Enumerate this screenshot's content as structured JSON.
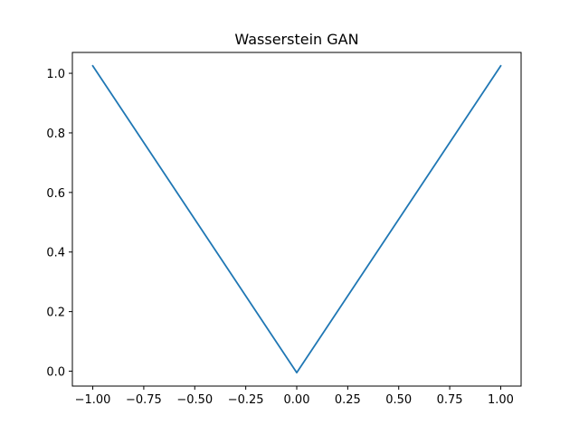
{
  "chart_data": {
    "type": "line",
    "title": "Wasserstein GAN",
    "xlabel": "",
    "ylabel": "",
    "xlim": [
      -1.1,
      1.1
    ],
    "ylim": [
      -0.05,
      1.07
    ],
    "grid": false,
    "x_ticks": [
      -1.0,
      -0.75,
      -0.5,
      -0.25,
      0.0,
      0.25,
      0.5,
      0.75,
      1.0
    ],
    "x_tick_labels": [
      "−1.00",
      "−0.75",
      "−0.50",
      "−0.25",
      "0.00",
      "0.25",
      "0.50",
      "0.75",
      "1.00"
    ],
    "y_ticks": [
      0.0,
      0.2,
      0.4,
      0.6,
      0.8,
      1.0
    ],
    "y_tick_labels": [
      "0.0",
      "0.2",
      "0.4",
      "0.6",
      "0.8",
      "1.0"
    ],
    "series": [
      {
        "color": "#1f77b4",
        "x": [
          -1.0,
          0.0,
          1.0
        ],
        "y": [
          1.025,
          -0.005,
          1.025
        ]
      }
    ]
  }
}
